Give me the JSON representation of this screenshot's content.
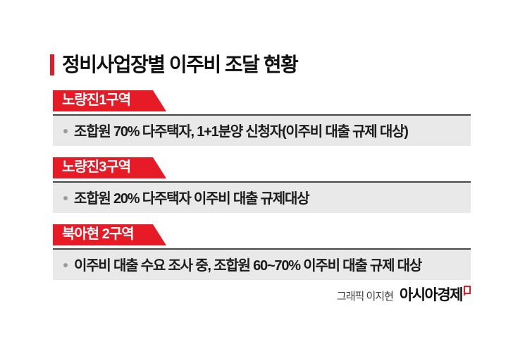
{
  "title": {
    "text": "정비사업장별 이주비 조달 현황"
  },
  "sections": [
    {
      "label": "노량진1구역",
      "description": "조합원 70% 다주택자, 1+1분양 신청자(이주비 대출 규제 대상)"
    },
    {
      "label": "노량진3구역",
      "description": "조합원 20% 다주택자 이주비 대출 규제대상"
    },
    {
      "label": "북아현 2구역",
      "description": "이주비 대출 수요 조사 중, 조합원 60~70% 이주비 대출 규제 대상"
    }
  ],
  "footer": {
    "credit": "그래픽 이지현",
    "brand": "아시아경제"
  },
  "colors": {
    "accent_red": "#e71b25",
    "bar_background": "#e9e9e9",
    "bar_top_border": "#484848",
    "body_text": "#1b1b1b",
    "bullet_gray": "#9b9b9b"
  }
}
